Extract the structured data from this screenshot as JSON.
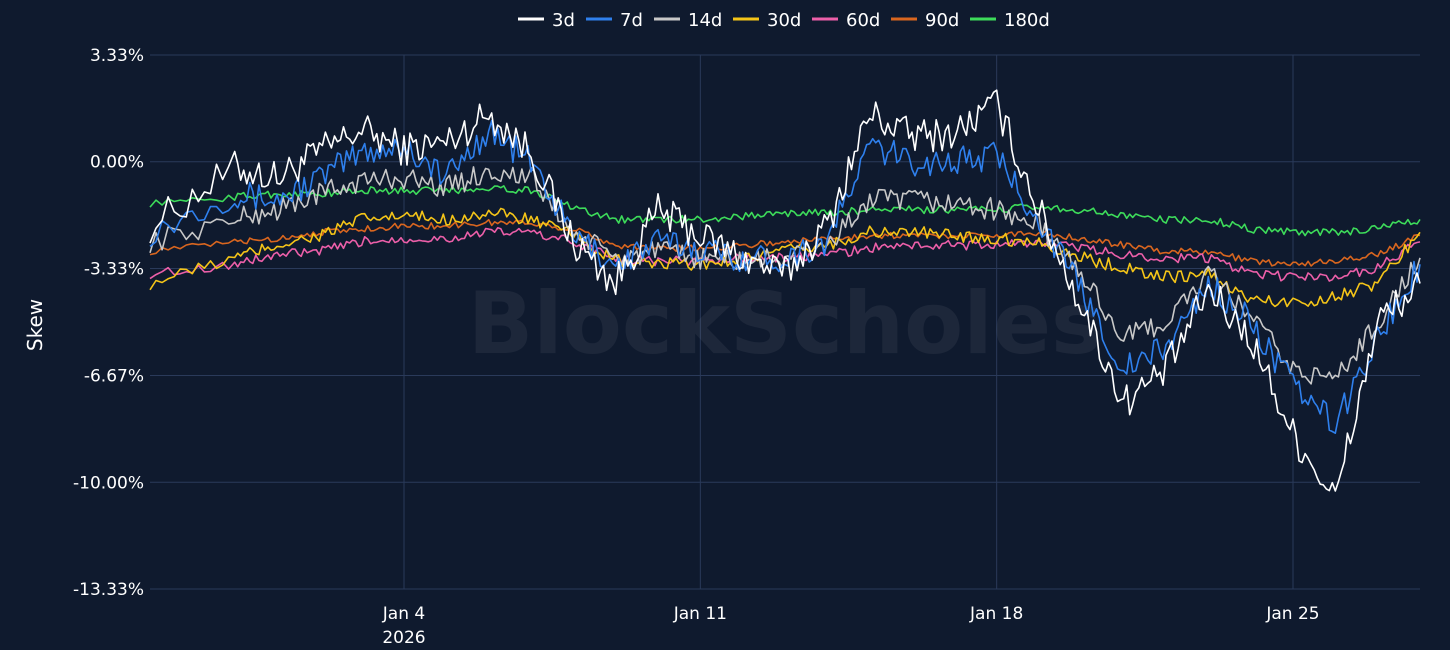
{
  "chart_data": {
    "type": "line",
    "ylabel": "Skew",
    "xlabel": "",
    "ylim": [
      -13.33,
      3.33
    ],
    "yticks": [
      "3.33%",
      "0.00%",
      "-3.33%",
      "-6.67%",
      "-10.00%",
      "-13.33%"
    ],
    "ytick_values": [
      3.33,
      0.0,
      -3.33,
      -6.67,
      -10.0,
      -13.33
    ],
    "xlim": [
      "2025-12-29",
      "2026-01-28"
    ],
    "xticks": [
      {
        "date": "2026-01-04",
        "label": "Jan 4",
        "sublabel": "2026"
      },
      {
        "date": "2026-01-11",
        "label": "Jan 11",
        "sublabel": ""
      },
      {
        "date": "2026-01-18",
        "label": "Jan 18",
        "sublabel": ""
      },
      {
        "date": "2026-01-25",
        "label": "Jan 25",
        "sublabel": ""
      }
    ],
    "grid": true,
    "legend_position": "top-center",
    "watermark": "BlockScholes",
    "series": [
      {
        "name": "3d",
        "color": "#ffffff",
        "x": [
          "2025-12-29",
          "2025-12-31",
          "2026-01-01",
          "2026-01-02",
          "2026-01-03",
          "2026-01-04",
          "2026-01-05",
          "2026-01-06",
          "2026-01-07",
          "2026-01-08",
          "2026-01-09",
          "2026-01-10",
          "2026-01-11",
          "2026-01-12",
          "2026-01-13",
          "2026-01-14",
          "2026-01-15",
          "2026-01-16",
          "2026-01-17",
          "2026-01-18",
          "2026-01-19",
          "2026-01-20",
          "2026-01-21",
          "2026-01-22",
          "2026-01-23",
          "2026-01-24",
          "2026-01-25",
          "2026-01-26",
          "2026-01-27",
          "2026-01-28"
        ],
        "y": [
          -2.0,
          -0.2,
          -0.5,
          0.3,
          1.0,
          0.4,
          0.6,
          1.5,
          0.3,
          -2.5,
          -3.8,
          -1.5,
          -2.3,
          -3.0,
          -3.5,
          -2.0,
          1.5,
          0.8,
          0.9,
          1.8,
          -1.5,
          -4.5,
          -7.5,
          -6.5,
          -4.0,
          -5.5,
          -8.5,
          -10.5,
          -5.0,
          -3.8
        ]
      },
      {
        "name": "7d",
        "color": "#2f80ed",
        "x": [
          "2025-12-29",
          "2025-12-31",
          "2026-01-01",
          "2026-01-02",
          "2026-01-03",
          "2026-01-04",
          "2026-01-05",
          "2026-01-06",
          "2026-01-07",
          "2026-01-08",
          "2026-01-09",
          "2026-01-10",
          "2026-01-11",
          "2026-01-12",
          "2026-01-13",
          "2026-01-14",
          "2026-01-15",
          "2026-01-16",
          "2026-01-17",
          "2026-01-18",
          "2026-01-19",
          "2026-01-20",
          "2026-01-21",
          "2026-01-22",
          "2026-01-23",
          "2026-01-24",
          "2026-01-25",
          "2026-01-26",
          "2026-01-27",
          "2026-01-28"
        ],
        "y": [
          -2.2,
          -1.0,
          -1.2,
          -0.5,
          0.3,
          0.5,
          -0.5,
          1.0,
          0.0,
          -2.3,
          -3.2,
          -2.5,
          -2.7,
          -3.0,
          -3.0,
          -2.5,
          0.5,
          0.0,
          0.0,
          0.2,
          -1.8,
          -4.0,
          -6.5,
          -5.8,
          -3.8,
          -5.0,
          -7.0,
          -8.2,
          -5.5,
          -3.2
        ]
      },
      {
        "name": "14d",
        "color": "#c8c8c8",
        "x": [
          "2025-12-29",
          "2025-12-31",
          "2026-01-01",
          "2026-01-02",
          "2026-01-03",
          "2026-01-04",
          "2026-01-05",
          "2026-01-06",
          "2026-01-07",
          "2026-01-08",
          "2026-01-09",
          "2026-01-10",
          "2026-01-11",
          "2026-01-12",
          "2026-01-13",
          "2026-01-14",
          "2026-01-15",
          "2026-01-16",
          "2026-01-17",
          "2026-01-18",
          "2026-01-19",
          "2026-01-20",
          "2026-01-21",
          "2026-01-22",
          "2026-01-23",
          "2026-01-24",
          "2026-01-25",
          "2026-01-26",
          "2026-01-27",
          "2026-01-28"
        ],
        "y": [
          -2.5,
          -1.8,
          -1.5,
          -1.0,
          -0.6,
          -0.5,
          -0.8,
          -0.3,
          -0.5,
          -2.2,
          -3.0,
          -2.8,
          -3.0,
          -3.1,
          -3.0,
          -2.6,
          -1.2,
          -1.2,
          -1.3,
          -1.5,
          -2.0,
          -3.5,
          -5.5,
          -5.0,
          -3.5,
          -4.8,
          -6.5,
          -6.8,
          -5.0,
          -3.0
        ]
      },
      {
        "name": "30d",
        "color": "#f5c518",
        "x": [
          "2025-12-29",
          "2025-12-31",
          "2026-01-01",
          "2026-01-02",
          "2026-01-03",
          "2026-01-04",
          "2026-01-05",
          "2026-01-06",
          "2026-01-07",
          "2026-01-08",
          "2026-01-09",
          "2026-01-10",
          "2026-01-11",
          "2026-01-12",
          "2026-01-13",
          "2026-01-14",
          "2026-01-15",
          "2026-01-16",
          "2026-01-17",
          "2026-01-18",
          "2026-01-19",
          "2026-01-20",
          "2026-01-21",
          "2026-01-22",
          "2026-01-23",
          "2026-01-24",
          "2026-01-25",
          "2026-01-26",
          "2026-01-27",
          "2026-01-28"
        ],
        "y": [
          -3.8,
          -3.0,
          -2.6,
          -2.3,
          -1.8,
          -1.7,
          -1.8,
          -1.6,
          -1.8,
          -2.3,
          -3.1,
          -3.2,
          -3.2,
          -3.0,
          -2.8,
          -2.6,
          -2.2,
          -2.2,
          -2.3,
          -2.4,
          -2.5,
          -3.0,
          -3.3,
          -3.6,
          -3.5,
          -4.3,
          -4.4,
          -4.2,
          -3.8,
          -2.2
        ]
      },
      {
        "name": "60d",
        "color": "#ec5fa9",
        "x": [
          "2025-12-29",
          "2025-12-31",
          "2026-01-01",
          "2026-01-02",
          "2026-01-03",
          "2026-01-04",
          "2026-01-05",
          "2026-01-06",
          "2026-01-07",
          "2026-01-08",
          "2026-01-09",
          "2026-01-10",
          "2026-01-11",
          "2026-01-12",
          "2026-01-13",
          "2026-01-14",
          "2026-01-15",
          "2026-01-16",
          "2026-01-17",
          "2026-01-18",
          "2026-01-19",
          "2026-01-20",
          "2026-01-21",
          "2026-01-22",
          "2026-01-23",
          "2026-01-24",
          "2026-01-25",
          "2026-01-26",
          "2026-01-27",
          "2026-01-28"
        ],
        "y": [
          -3.5,
          -3.2,
          -2.9,
          -2.8,
          -2.5,
          -2.4,
          -2.4,
          -2.2,
          -2.2,
          -2.5,
          -3.0,
          -3.1,
          -3.1,
          -3.0,
          -3.0,
          -2.9,
          -2.7,
          -2.6,
          -2.6,
          -2.6,
          -2.5,
          -2.7,
          -2.9,
          -3.0,
          -3.0,
          -3.5,
          -3.6,
          -3.6,
          -3.3,
          -2.5
        ]
      },
      {
        "name": "90d",
        "color": "#d9661f",
        "x": [
          "2025-12-29",
          "2025-12-31",
          "2026-01-01",
          "2026-01-02",
          "2026-01-03",
          "2026-01-04",
          "2026-01-05",
          "2026-01-06",
          "2026-01-07",
          "2026-01-08",
          "2026-01-09",
          "2026-01-10",
          "2026-01-11",
          "2026-01-12",
          "2026-01-13",
          "2026-01-14",
          "2026-01-15",
          "2026-01-16",
          "2026-01-17",
          "2026-01-18",
          "2026-01-19",
          "2026-01-20",
          "2026-01-21",
          "2026-01-22",
          "2026-01-23",
          "2026-01-24",
          "2026-01-25",
          "2026-01-26",
          "2026-01-27",
          "2026-01-28"
        ],
        "y": [
          -2.8,
          -2.5,
          -2.4,
          -2.2,
          -2.1,
          -2.0,
          -2.0,
          -1.9,
          -1.9,
          -2.1,
          -2.6,
          -2.7,
          -2.7,
          -2.6,
          -2.5,
          -2.4,
          -2.3,
          -2.3,
          -2.3,
          -2.3,
          -2.2,
          -2.4,
          -2.6,
          -2.8,
          -2.8,
          -3.1,
          -3.2,
          -3.1,
          -2.9,
          -2.3
        ]
      },
      {
        "name": "180d",
        "color": "#3ddc5a",
        "x": [
          "2025-12-29",
          "2025-12-31",
          "2026-01-01",
          "2026-01-02",
          "2026-01-03",
          "2026-01-04",
          "2026-01-05",
          "2026-01-06",
          "2026-01-07",
          "2026-01-08",
          "2026-01-09",
          "2026-01-10",
          "2026-01-11",
          "2026-01-12",
          "2026-01-13",
          "2026-01-14",
          "2026-01-15",
          "2026-01-16",
          "2026-01-17",
          "2026-01-18",
          "2026-01-19",
          "2026-01-20",
          "2026-01-21",
          "2026-01-22",
          "2026-01-23",
          "2026-01-24",
          "2026-01-25",
          "2026-01-26",
          "2026-01-27",
          "2026-01-28"
        ],
        "y": [
          -1.3,
          -1.1,
          -1.0,
          -1.0,
          -0.9,
          -0.9,
          -0.9,
          -0.8,
          -0.9,
          -1.4,
          -1.8,
          -1.8,
          -1.8,
          -1.7,
          -1.6,
          -1.6,
          -1.5,
          -1.5,
          -1.5,
          -1.5,
          -1.4,
          -1.5,
          -1.7,
          -1.8,
          -1.8,
          -2.1,
          -2.2,
          -2.2,
          -2.1,
          -1.8
        ]
      }
    ]
  }
}
